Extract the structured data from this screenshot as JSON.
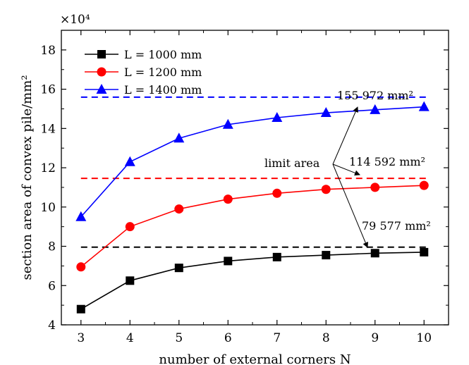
{
  "chart_data": {
    "type": "line",
    "xlabel": "number of external corners N",
    "ylabel": "section area of convex pile/mm²",
    "multiplier": "×10⁴",
    "xlim": [
      2.6,
      10.5
    ],
    "ylim": [
      4,
      19
    ],
    "x_ticks": [
      3,
      4,
      5,
      6,
      7,
      8,
      9,
      10
    ],
    "y_ticks": [
      4,
      6,
      8,
      10,
      12,
      14,
      16,
      18
    ],
    "x": [
      3,
      4,
      5,
      6,
      7,
      8,
      9,
      10
    ],
    "series": [
      {
        "name": "L = 1000 mm",
        "color": "#000000",
        "marker": "square",
        "values": [
          4.8,
          6.25,
          6.9,
          7.25,
          7.45,
          7.55,
          7.65,
          7.7
        ],
        "limit": 7.9577
      },
      {
        "name": "L = 1200 mm",
        "color": "#ff0000",
        "marker": "circle",
        "values": [
          6.95,
          9.0,
          9.9,
          10.4,
          10.7,
          10.9,
          11.0,
          11.1
        ],
        "limit": 11.4592
      },
      {
        "name": "L = 1400 mm",
        "color": "#0000ff",
        "marker": "triangle",
        "values": [
          9.5,
          12.3,
          13.5,
          14.2,
          14.55,
          14.8,
          14.95,
          15.1
        ],
        "limit": 15.5972
      }
    ],
    "annotations": {
      "limit_label": "limit area",
      "limit_1400": "155 972 mm²",
      "limit_1200": "114 592 mm²",
      "limit_1000": "79 577 mm²"
    },
    "legend_position": "top-left",
    "grid": false
  }
}
